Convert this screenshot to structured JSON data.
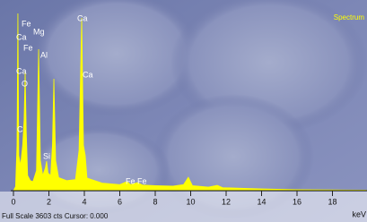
{
  "chart_data": {
    "type": "area",
    "x": [
      0,
      0.12,
      0.2,
      0.25,
      0.3,
      0.4,
      0.52,
      0.6,
      0.66,
      0.72,
      0.8,
      0.95,
      1.1,
      1.3,
      1.42,
      1.52,
      1.65,
      1.8,
      1.87,
      1.95,
      2.1,
      2.2,
      2.28,
      2.38,
      2.55,
      3.0,
      3.5,
      3.7,
      3.85,
      3.95,
      4.05,
      4.15,
      5,
      6,
      6.4,
      6.6,
      7.0,
      7.3,
      8,
      9,
      9.6,
      9.87,
      10.1,
      11,
      11.5,
      11.8,
      13,
      14,
      16,
      18,
      19.9
    ],
    "values": [
      0,
      80,
      900,
      3514,
      700,
      500,
      900,
      1400,
      2360,
      1200,
      300,
      200,
      180,
      400,
      2804,
      600,
      300,
      450,
      586,
      350,
      300,
      900,
      2219,
      600,
      260,
      200,
      220,
      800,
      3425,
      900,
      700,
      250,
      150,
      120,
      180,
      120,
      160,
      110,
      100,
      90,
      120,
      266,
      100,
      70,
      106,
      60,
      45,
      35,
      20,
      15,
      10
    ],
    "color": "#ffff00",
    "xlim": [
      0,
      19.9
    ],
    "ylim": [
      0,
      3603
    ],
    "xticks": [
      0,
      2,
      4,
      6,
      8,
      10,
      12,
      14,
      16,
      18
    ],
    "x_label": "keV",
    "footer": "Full Scale 3603 cts Cursor: 0.000",
    "annotations": [
      "Fe",
      "Ca",
      "Mg",
      "Fe",
      "Ca",
      "Al",
      "Ca",
      "Ca",
      "O",
      "C",
      "Si",
      "Fe Fe",
      "Spectrum"
    ]
  }
}
